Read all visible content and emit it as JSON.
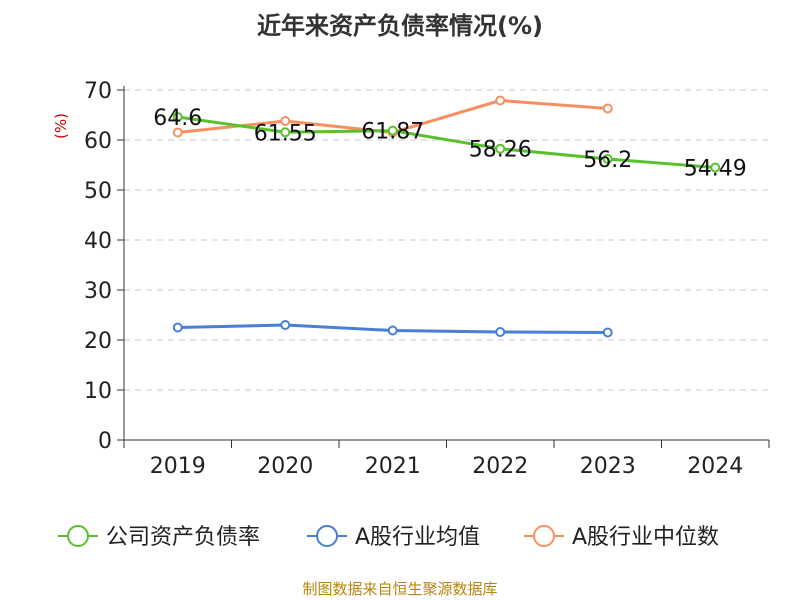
{
  "chart_data": {
    "type": "line",
    "title": "近年来资产负债率情况(%)",
    "ylabel": "(%)",
    "ylim": [
      0,
      70
    ],
    "yticks": [
      0,
      10,
      20,
      30,
      40,
      50,
      60,
      70
    ],
    "categories": [
      "2019",
      "2020",
      "2021",
      "2022",
      "2023",
      "2024"
    ],
    "grid": true,
    "legend_position": "bottom",
    "series": [
      {
        "name": "公司资产负债率",
        "color": "#5ac12e",
        "values": [
          64.6,
          61.55,
          61.87,
          58.26,
          56.2,
          54.49
        ],
        "labels": [
          "64.6",
          "61.55",
          "61.87",
          "58.26",
          "56.2",
          "54.49"
        ]
      },
      {
        "name": "A股行业均值",
        "color": "#4a7fd8",
        "values": [
          22.5,
          23.0,
          21.9,
          21.6,
          21.5,
          null
        ]
      },
      {
        "name": "A股行业中位数",
        "color": "#f79060",
        "values": [
          61.5,
          63.8,
          61.5,
          67.9,
          66.3,
          null
        ]
      }
    ]
  },
  "footer": {
    "source": "制图数据来自恒生聚源数据库"
  }
}
